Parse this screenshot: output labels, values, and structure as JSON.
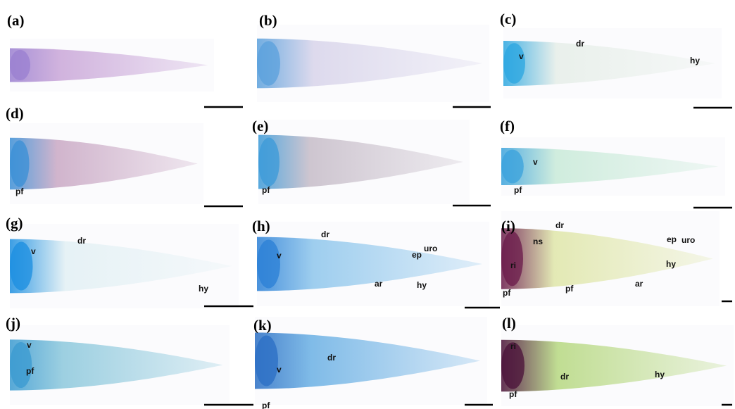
{
  "panels": [
    {
      "label": "(a)",
      "annotations": []
    },
    {
      "label": "(b)",
      "annotations": []
    },
    {
      "label": "(c)",
      "annotations": [
        "v",
        "dr",
        "hy"
      ]
    },
    {
      "label": "(d)",
      "annotations": [
        "pf"
      ]
    },
    {
      "label": "(e)",
      "annotations": [
        "pf"
      ]
    },
    {
      "label": "(f)",
      "annotations": [
        "v",
        "pf"
      ]
    },
    {
      "label": "(g)",
      "annotations": [
        "dr",
        "v",
        "hy"
      ]
    },
    {
      "label": "(h)",
      "annotations": [
        "dr",
        "v",
        "ep",
        "uro",
        "ar",
        "hy"
      ]
    },
    {
      "label": "(i)",
      "annotations": [
        "dr",
        "ns",
        "ep",
        "uro",
        "ri",
        "hy",
        "ar",
        "pf",
        "pf"
      ]
    },
    {
      "label": "(j)",
      "annotations": [
        "v",
        "pf"
      ]
    },
    {
      "label": "(k)",
      "annotations": [
        "v",
        "dr",
        "pf"
      ]
    },
    {
      "label": "(l)",
      "annotations": [
        "ri",
        "dr",
        "hy",
        "pf"
      ]
    }
  ]
}
